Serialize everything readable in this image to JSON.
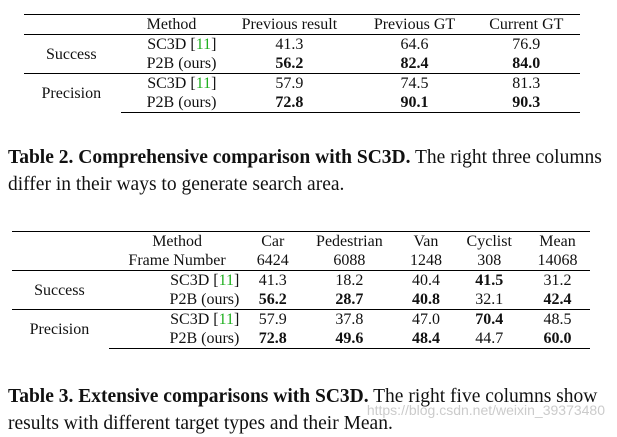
{
  "table2": {
    "headers": [
      "",
      "Method",
      "Previous result",
      "Previous GT",
      "Current GT"
    ],
    "groups": [
      {
        "label": "Success",
        "rows": [
          {
            "method": "SC3D",
            "cite": "11",
            "values": [
              "41.3",
              "64.6",
              "76.9"
            ],
            "bold": [
              false,
              false,
              false
            ]
          },
          {
            "method": "P2B (ours)",
            "cite": "",
            "values": [
              "56.2",
              "82.4",
              "84.0"
            ],
            "bold": [
              true,
              true,
              true
            ]
          }
        ]
      },
      {
        "label": "Precision",
        "rows": [
          {
            "method": "SC3D",
            "cite": "11",
            "values": [
              "57.9",
              "74.5",
              "81.3"
            ],
            "bold": [
              false,
              false,
              false
            ]
          },
          {
            "method": "P2B (ours)",
            "cite": "",
            "values": [
              "72.8",
              "90.1",
              "90.3"
            ],
            "bold": [
              true,
              true,
              true
            ]
          }
        ]
      }
    ],
    "caption_lead": "Table 2. Comprehensive comparison with SC3D.",
    "caption_rest": " The right three columns differ in their ways to generate search area."
  },
  "table3": {
    "headers": [
      "",
      "Method",
      "Car",
      "Pedestrian",
      "Van",
      "Cyclist",
      "Mean"
    ],
    "subheaders": [
      "",
      "Frame Number",
      "6424",
      "6088",
      "1248",
      "308",
      "14068"
    ],
    "groups": [
      {
        "label": "Success",
        "rows": [
          {
            "method": "SC3D",
            "cite": "11",
            "values": [
              "41.3",
              "18.2",
              "40.4",
              "41.5",
              "31.2"
            ],
            "bold": [
              false,
              false,
              false,
              true,
              false
            ]
          },
          {
            "method": "P2B (ours)",
            "cite": "",
            "values": [
              "56.2",
              "28.7",
              "40.8",
              "32.1",
              "42.4"
            ],
            "bold": [
              true,
              true,
              true,
              false,
              true
            ]
          }
        ]
      },
      {
        "label": "Precision",
        "rows": [
          {
            "method": "SC3D",
            "cite": "11",
            "values": [
              "57.9",
              "37.8",
              "47.0",
              "70.4",
              "48.5"
            ],
            "bold": [
              false,
              false,
              false,
              true,
              false
            ]
          },
          {
            "method": "P2B (ours)",
            "cite": "",
            "values": [
              "72.8",
              "49.6",
              "48.4",
              "44.7",
              "60.0"
            ],
            "bold": [
              true,
              true,
              true,
              false,
              true
            ]
          }
        ]
      }
    ],
    "caption_lead": "Table 3. Extensive comparisons with SC3D.",
    "caption_rest": " The right five columns show results with different target types and their Mean."
  },
  "watermark": "https://blog.csdn.net/weixin_39373480"
}
